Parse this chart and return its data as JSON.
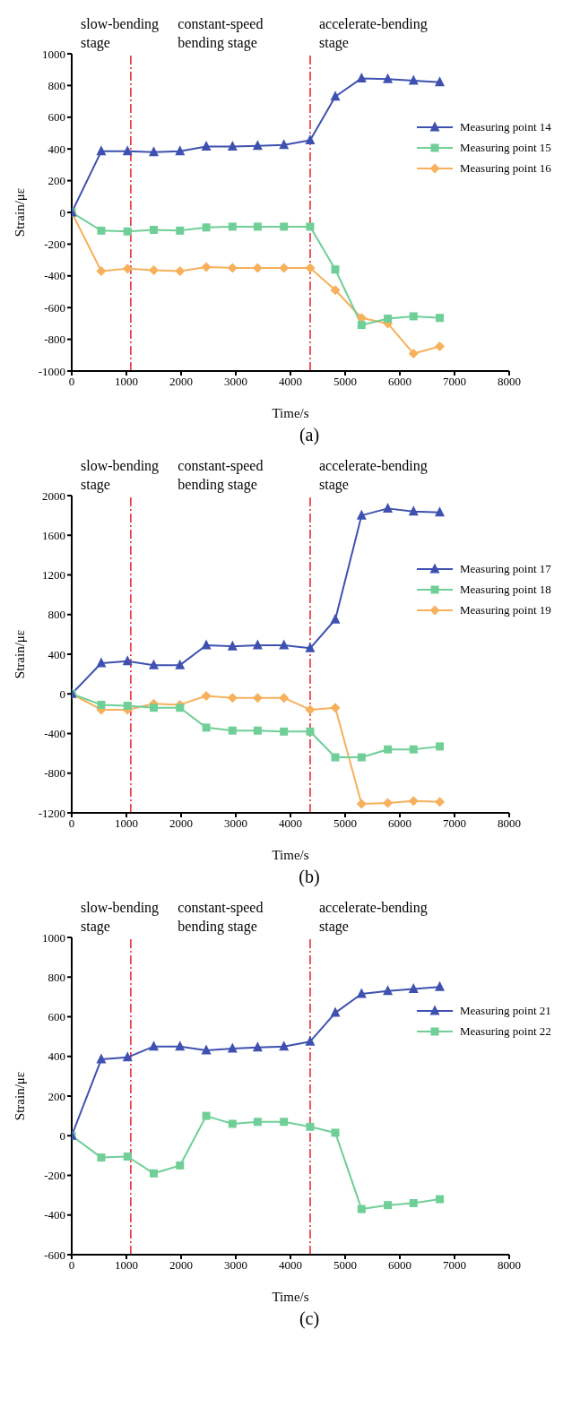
{
  "chart_data": [
    {
      "type": "line",
      "title": "(a)",
      "xlabel": "Time/s",
      "ylabel": "Strain/με",
      "x": [
        0,
        540,
        1020,
        1500,
        1980,
        2460,
        2940,
        3400,
        3880,
        4360,
        4820,
        5300,
        5780,
        6250,
        6730
      ],
      "xlim": [
        0,
        8000
      ],
      "xticks": [
        0,
        1000,
        2000,
        3000,
        4000,
        5000,
        6000,
        7000,
        8000
      ],
      "ylim": [
        -1000,
        1000
      ],
      "yticks": [
        -1000,
        -800,
        -600,
        -400,
        -200,
        0,
        200,
        400,
        600,
        800,
        1000
      ],
      "legend": "right",
      "grid": false,
      "line_style": "solid",
      "series": [
        {
          "name": "Measuring point 14",
          "color": "#3f51b0",
          "marker": "triangle",
          "values": [
            0,
            385,
            385,
            380,
            385,
            415,
            415,
            420,
            425,
            455,
            730,
            845,
            840,
            830,
            820
          ]
        },
        {
          "name": "Measuring point 15",
          "color": "#6fcf97",
          "marker": "square",
          "values": [
            0,
            -115,
            -120,
            -110,
            -115,
            -95,
            -90,
            -90,
            -90,
            -90,
            -360,
            -710,
            -670,
            -655,
            -665
          ]
        },
        {
          "name": "Measuring point 16",
          "color": "#f7b05b",
          "marker": "diamond",
          "values": [
            0,
            -370,
            -355,
            -365,
            -370,
            -345,
            -350,
            -350,
            -350,
            -350,
            -490,
            -665,
            -700,
            -890,
            -845
          ]
        }
      ],
      "ref_lines": [
        {
          "axis": "x",
          "value": 1080,
          "color": "#e8202a",
          "line_style": "dashed"
        },
        {
          "axis": "x",
          "value": 4360,
          "color": "#e8202a",
          "line_style": "dashed"
        }
      ],
      "annotations": [
        "slow-bending\nstage",
        "constant-speed\nbending stage",
        "accelerate-bending\nstage"
      ]
    },
    {
      "type": "line",
      "title": "(b)",
      "xlabel": "Time/s",
      "ylabel": "Strain/με",
      "x": [
        0,
        540,
        1020,
        1500,
        1980,
        2460,
        2940,
        3400,
        3880,
        4360,
        4820,
        5300,
        5780,
        6250,
        6730
      ],
      "xlim": [
        0,
        8000
      ],
      "xticks": [
        0,
        1000,
        2000,
        3000,
        4000,
        5000,
        6000,
        7000,
        8000
      ],
      "ylim": [
        -1200,
        2000
      ],
      "yticks": [
        -1200,
        -800,
        -400,
        0,
        400,
        800,
        1200,
        1600,
        2000
      ],
      "legend": "right",
      "grid": false,
      "line_style": "solid",
      "series": [
        {
          "name": "Measuring point 17",
          "color": "#3f51b0",
          "marker": "triangle",
          "values": [
            0,
            310,
            330,
            290,
            290,
            490,
            480,
            490,
            490,
            460,
            750,
            1800,
            1870,
            1840,
            1830
          ]
        },
        {
          "name": "Measuring point 18",
          "color": "#6fcf97",
          "marker": "square",
          "values": [
            0,
            -110,
            -120,
            -140,
            -140,
            -340,
            -370,
            -370,
            -380,
            -380,
            -640,
            -640,
            -560,
            -560,
            -530
          ]
        },
        {
          "name": "Measuring point 19",
          "color": "#f7b05b",
          "marker": "diamond",
          "values": [
            0,
            -160,
            -160,
            -100,
            -110,
            -20,
            -40,
            -40,
            -40,
            -160,
            -140,
            -1110,
            -1100,
            -1080,
            -1090
          ]
        }
      ],
      "ref_lines": [
        {
          "axis": "x",
          "value": 1080,
          "color": "#e8202a",
          "line_style": "dashed"
        },
        {
          "axis": "x",
          "value": 4360,
          "color": "#e8202a",
          "line_style": "dashed"
        }
      ],
      "annotations": [
        "slow-bending\nstage",
        "constant-speed\nbending stage",
        "accelerate-bending\nstage"
      ]
    },
    {
      "type": "line",
      "title": "(c)",
      "xlabel": "Time/s",
      "ylabel": "Strain/με",
      "x": [
        0,
        540,
        1020,
        1500,
        1980,
        2460,
        2940,
        3400,
        3880,
        4360,
        4820,
        5300,
        5780,
        6250,
        6730
      ],
      "xlim": [
        0,
        8000
      ],
      "xticks": [
        0,
        1000,
        2000,
        3000,
        4000,
        5000,
        6000,
        7000,
        8000
      ],
      "ylim": [
        -600,
        1000
      ],
      "yticks": [
        -600,
        -400,
        -200,
        0,
        200,
        400,
        600,
        800,
        1000
      ],
      "legend": "right",
      "grid": false,
      "line_style": "solid",
      "series": [
        {
          "name": "Measuring point 21",
          "color": "#3f51b0",
          "marker": "triangle",
          "values": [
            0,
            385,
            395,
            450,
            450,
            430,
            440,
            445,
            450,
            475,
            620,
            715,
            730,
            740,
            750
          ]
        },
        {
          "name": "Measuring point 22",
          "color": "#6fcf97",
          "marker": "square",
          "values": [
            0,
            -110,
            -105,
            -190,
            -150,
            100,
            60,
            70,
            70,
            45,
            15,
            -370,
            -350,
            -340,
            -320
          ]
        }
      ],
      "ref_lines": [
        {
          "axis": "x",
          "value": 1080,
          "color": "#e8202a",
          "line_style": "dashed"
        },
        {
          "axis": "x",
          "value": 4360,
          "color": "#e8202a",
          "line_style": "dashed"
        }
      ],
      "annotations": [
        "slow-bending\nstage",
        "constant-speed\nbending stage",
        "accelerate-bending\nstage"
      ]
    }
  ]
}
